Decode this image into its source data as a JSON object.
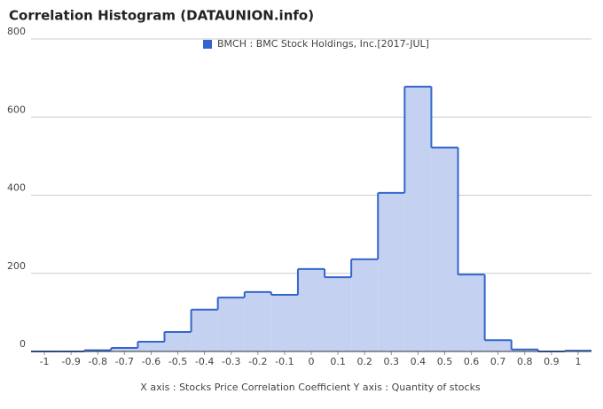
{
  "chart_data": {
    "type": "histogram",
    "title": "Correlation Histogram (DATAUNION.info)",
    "xlabel": "X axis : Stocks Price Correlation Coefficient  Y axis : Quantity of stocks",
    "bins": [
      -1.05,
      -0.95,
      -0.85,
      -0.75,
      -0.65,
      -0.55,
      -0.45,
      -0.35,
      -0.25,
      -0.15,
      -0.05,
      0.05,
      0.15,
      0.25,
      0.35,
      0.45,
      0.55,
      0.65,
      0.75,
      0.85,
      0.95,
      1.05
    ],
    "series": [
      {
        "name": "BMCH : BMC Stock Holdings, Inc.[2017-JUL]",
        "color": "#3366cc",
        "fill": "#c5d1f0",
        "values": [
          0,
          0,
          3,
          9,
          25,
          50,
          107,
          138,
          152,
          145,
          211,
          190,
          236,
          406,
          678,
          522,
          197,
          29,
          5,
          0,
          2
        ]
      }
    ],
    "xlim": [
      -1.05,
      1.05
    ],
    "xticks": [
      -1,
      -0.9,
      -0.8,
      -0.7,
      -0.6,
      -0.5,
      -0.4,
      -0.3,
      -0.2,
      -0.1,
      0,
      0.1,
      0.2,
      0.3,
      0.4,
      0.5,
      0.6,
      0.7,
      0.8,
      0.9,
      1
    ],
    "ylim": [
      0,
      800
    ],
    "yticks": [
      0,
      200,
      400,
      600,
      800
    ],
    "grid": true
  }
}
